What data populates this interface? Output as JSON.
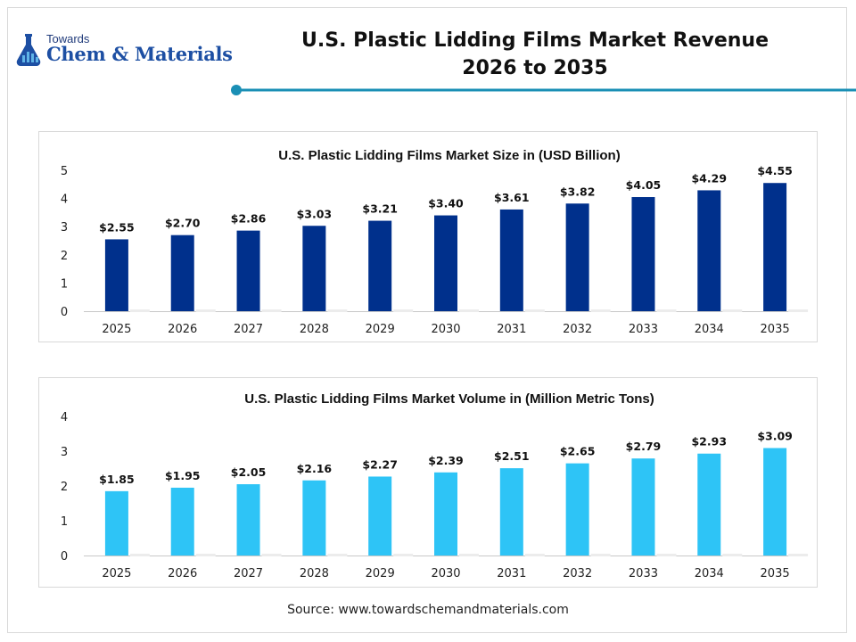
{
  "header": {
    "logo_small": "Towards",
    "logo_name": "Chem & Materials",
    "title_line1": "U.S. Plastic Lidding Films Market Revenue",
    "title_line2": "2026 to 2035",
    "accent_color": "#1a8fb5"
  },
  "source": "Source: www.towardschemandmaterials.com",
  "chart_data": [
    {
      "type": "bar",
      "title": "U.S. Plastic Lidding Films Market Size in (USD Billion)",
      "xlabel": "",
      "ylabel": "",
      "categories": [
        "2025",
        "2026",
        "2027",
        "2028",
        "2029",
        "2030",
        "2031",
        "2032",
        "2033",
        "2034",
        "2035"
      ],
      "values": [
        2.55,
        2.7,
        2.86,
        3.03,
        3.21,
        3.4,
        3.61,
        3.82,
        4.05,
        4.29,
        4.55
      ],
      "data_labels": [
        "$2.55",
        "$2.70",
        "$2.86",
        "$3.03",
        "$3.21",
        "$3.40",
        "$3.61",
        "$3.82",
        "$4.05",
        "$4.29",
        "$4.55"
      ],
      "ylim": [
        0,
        5
      ],
      "yticks": [
        "0",
        "1",
        "2",
        "3",
        "4",
        "5"
      ],
      "color": "#00308c",
      "grid": false,
      "legend": "none"
    },
    {
      "type": "bar",
      "title": "U.S. Plastic Lidding Films Market Volume in (Million Metric Tons)",
      "xlabel": "",
      "ylabel": "",
      "categories": [
        "2025",
        "2026",
        "2027",
        "2028",
        "2029",
        "2030",
        "2031",
        "2032",
        "2033",
        "2034",
        "2035"
      ],
      "values": [
        1.85,
        1.95,
        2.05,
        2.16,
        2.27,
        2.39,
        2.51,
        2.65,
        2.79,
        2.93,
        3.09
      ],
      "data_labels": [
        "$1.85",
        "$1.95",
        "$2.05",
        "$2.16",
        "$2.27",
        "$2.39",
        "$2.51",
        "$2.65",
        "$2.79",
        "$2.93",
        "$3.09"
      ],
      "ylim": [
        0,
        4
      ],
      "yticks": [
        "0",
        "1",
        "2",
        "3",
        "4"
      ],
      "color": "#2ec4f6",
      "grid": false,
      "legend": "none"
    }
  ]
}
